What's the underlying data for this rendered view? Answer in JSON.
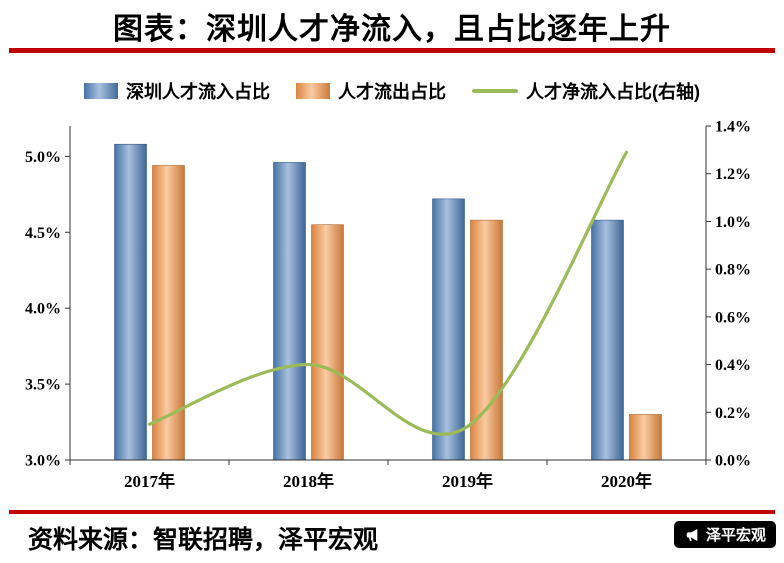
{
  "header": {
    "title": "图表：深圳人才净流入，且占比逐年上升"
  },
  "legend": {
    "items": [
      {
        "label": "深圳人才流入占比",
        "marker": "bar",
        "color": "#4F81BD"
      },
      {
        "label": "人才流出占比",
        "marker": "bar",
        "color": "#F79646"
      },
      {
        "label": "人才净流入占比(右轴)",
        "marker": "line",
        "color": "#9BBB59"
      }
    ]
  },
  "chart_data": {
    "type": "bar",
    "categories": [
      "2017年",
      "2018年",
      "2019年",
      "2020年"
    ],
    "series": [
      {
        "name": "深圳人才流入占比",
        "type": "bar",
        "axis": "left",
        "color": "#4F81BD",
        "values": [
          5.08,
          4.96,
          4.72,
          4.58
        ]
      },
      {
        "name": "人才流出占比",
        "type": "bar",
        "axis": "left",
        "color": "#F79646",
        "values": [
          4.94,
          4.55,
          4.58,
          3.3
        ]
      },
      {
        "name": "人才净流入占比(右轴)",
        "type": "line",
        "axis": "right",
        "color": "#9BBB59",
        "values": [
          0.15,
          0.4,
          0.14,
          1.29
        ]
      }
    ],
    "left_axis": {
      "min": 3.0,
      "max": 5.2,
      "ticks": [
        3.0,
        3.5,
        4.0,
        4.5,
        5.0
      ],
      "tick_labels": [
        "3.0%",
        "3.5%",
        "4.0%",
        "4.5%",
        "5.0%"
      ]
    },
    "right_axis": {
      "min": 0.0,
      "max": 1.4,
      "ticks": [
        0.0,
        0.2,
        0.4,
        0.6,
        0.8,
        1.0,
        1.2,
        1.4
      ],
      "tick_labels": [
        "0.0%",
        "0.2%",
        "0.4%",
        "0.6%",
        "0.8%",
        "1.0%",
        "1.2%",
        "1.4%"
      ]
    },
    "grid": false,
    "legend_position": "top"
  },
  "footer": {
    "source": "资料来源：智联招聘，泽平宏观",
    "badge_label": "泽平宏观",
    "badge_icon": "megaphone-icon"
  },
  "colors": {
    "rule_red": "#C00000",
    "axis": "#333333",
    "text": "#000000"
  }
}
